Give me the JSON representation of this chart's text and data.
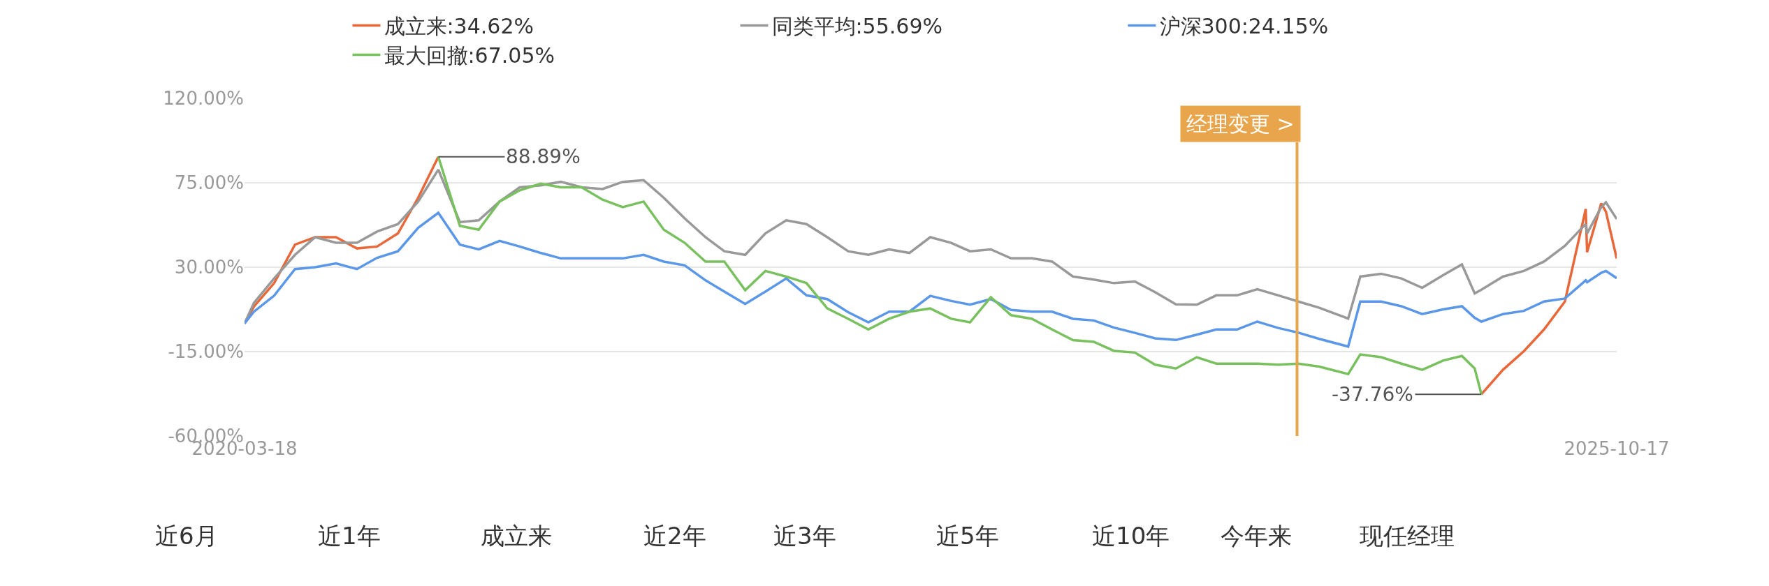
{
  "chart_data": {
    "type": "line",
    "x": [
      "2020-03-18",
      "2020-04",
      "2020-05",
      "2020-06",
      "2020-07",
      "2020-08",
      "2020-09",
      "2020-10",
      "2020-11",
      "2020-12",
      "2020-12-31",
      "2021-02",
      "2021-03",
      "2021-04",
      "2021-05",
      "2021-06",
      "2021-07",
      "2021-08",
      "2021-09",
      "2021-10",
      "2021-11",
      "2021-12",
      "2022-01",
      "2022-02",
      "2022-03",
      "2022-04",
      "2022-05",
      "2022-06",
      "2022-07",
      "2022-08",
      "2022-09",
      "2022-10",
      "2022-11",
      "2022-12",
      "2023-01",
      "2023-02",
      "2023-03",
      "2023-04",
      "2023-05",
      "2023-06",
      "2023-07",
      "2023-08",
      "2023-09",
      "2023-10",
      "2023-11",
      "2023-12",
      "2024-01",
      "2024-02",
      "2024-03",
      "2024-04",
      "2024-05",
      "2024-06",
      "2024-07",
      "2024-08",
      "2024-09-13",
      "2024-10",
      "2024-11",
      "2024-12",
      "2025-01",
      "2025-02",
      "2025-03",
      "2025-03-20",
      "2025-03-30",
      "2025-05",
      "2025-06",
      "2025-07",
      "2025-08",
      "2025-09",
      "2025-09-03",
      "2025-09-24",
      "2025-10",
      "2025-10-17"
    ],
    "series": [
      {
        "name": "成立来:34.62%",
        "color": "#e8683a",
        "values": [
          0,
          9,
          21.5,
          42,
          46,
          46,
          40,
          41,
          48,
          67,
          88.89,
          null,
          null,
          null,
          null,
          null,
          null,
          null,
          null,
          null,
          null,
          null,
          null,
          null,
          null,
          null,
          null,
          null,
          null,
          null,
          null,
          null,
          null,
          null,
          null,
          null,
          null,
          null,
          null,
          null,
          null,
          null,
          null,
          null,
          null,
          null,
          null,
          null,
          null,
          null,
          null,
          null,
          null,
          null,
          null,
          null,
          null,
          null,
          null,
          null,
          null,
          null,
          -37.76,
          -24.7,
          -14.8,
          -3.2,
          11.7,
          61,
          38,
          64,
          59.6,
          34.62
        ]
      },
      {
        "name": "同类平均:55.69%",
        "color": "#999999",
        "values": [
          0,
          11,
          24,
          36.6,
          46,
          43,
          43,
          49,
          53,
          65,
          82,
          54,
          55,
          65,
          72.6,
          73.6,
          75.5,
          72.6,
          71.7,
          75.5,
          76.4,
          67,
          56,
          46,
          38.5,
          36.6,
          48,
          55,
          53,
          46,
          38.5,
          36.6,
          39.5,
          37.6,
          46,
          43,
          38.5,
          39.5,
          34.7,
          34.7,
          33,
          25,
          23.4,
          21.5,
          22.4,
          16.7,
          10.2,
          10,
          15,
          15,
          18.3,
          15,
          11.7,
          8.4,
          2.6,
          25,
          26.5,
          24,
          19,
          25.7,
          31.5,
          16,
          18,
          25,
          28,
          33,
          41.4,
          53,
          48,
          62,
          64.6,
          55.69
        ]
      },
      {
        "name": "沪深300:24.15%",
        "color": "#5b97e8",
        "values": [
          0,
          6.3,
          14.8,
          29,
          30,
          32,
          29,
          35,
          38.5,
          51,
          59,
          42,
          39.5,
          44,
          41,
          37.6,
          34.7,
          34.7,
          34.7,
          34.7,
          36.6,
          33,
          31,
          23,
          17,
          10.4,
          17,
          24,
          15,
          13,
          6,
          0.6,
          6.3,
          6.3,
          14.7,
          12,
          10,
          13,
          7.2,
          6.3,
          6.3,
          2.5,
          1.6,
          -2.2,
          -5,
          -7.9,
          -8.8,
          -6,
          -3.2,
          -3.2,
          1,
          -2.4,
          -4.9,
          -8.2,
          -12.3,
          11.7,
          11.7,
          9.2,
          5,
          7.5,
          9.2,
          3,
          1,
          5,
          6.7,
          11.7,
          13.3,
          23,
          22,
          27,
          28,
          24.15
        ]
      },
      {
        "name": "最大回撤:67.05%",
        "color": "#79c05f",
        "values": [
          null,
          null,
          null,
          null,
          null,
          null,
          null,
          null,
          null,
          null,
          88.89,
          52,
          50,
          65,
          71,
          74.5,
          72.6,
          72.6,
          66,
          62,
          65,
          50,
          43,
          33,
          33,
          17.7,
          28,
          25,
          21.5,
          8,
          2.5,
          -3.2,
          2.5,
          6.3,
          8,
          2.5,
          0.6,
          14,
          4.4,
          2.5,
          -3.2,
          -8.9,
          -9.8,
          -14.6,
          -15.5,
          -22,
          -24,
          -18,
          -21.4,
          -21.4,
          -21.4,
          -22,
          -21.4,
          -23,
          -27,
          -16.5,
          -18,
          -21.4,
          -24.7,
          -19.8,
          -17.3,
          -24,
          -37.76,
          null,
          null,
          null,
          null,
          null,
          null,
          null,
          null,
          null
        ]
      }
    ],
    "xlim": [
      "2020-03-18",
      "2025-10-17"
    ],
    "xticks": [
      {
        "value": "2020-03-18",
        "label": "2020-03-18"
      },
      {
        "value": "2025-10-17",
        "label": "2025-10-17"
      }
    ],
    "ylim": [
      -60,
      120
    ],
    "yticks": [
      {
        "value": -60,
        "label": "-60.00%"
      },
      {
        "value": -15,
        "label": "-15.00%"
      },
      {
        "value": 30,
        "label": "30.00%"
      },
      {
        "value": 75,
        "label": "75.00%"
      },
      {
        "value": 120,
        "label": "120.00%"
      }
    ],
    "grid": "y",
    "legend": "top",
    "line_style": "solid",
    "ref_lines": [
      {
        "axis": "x",
        "value": "2024-06-29",
        "label": "经理变更 >",
        "color": "#e8a54b"
      }
    ],
    "annotations": [
      {
        "text": "88.89%",
        "x": "2020-12-31",
        "y": 88.89
      },
      {
        "text": "-37.76%",
        "x": "2025-03-30",
        "y": -37.76
      },
      "近6月",
      "近1年",
      "成立来",
      "近2年",
      "近3年",
      "近5年",
      "近10年",
      "今年来",
      "现任经理"
    ]
  }
}
